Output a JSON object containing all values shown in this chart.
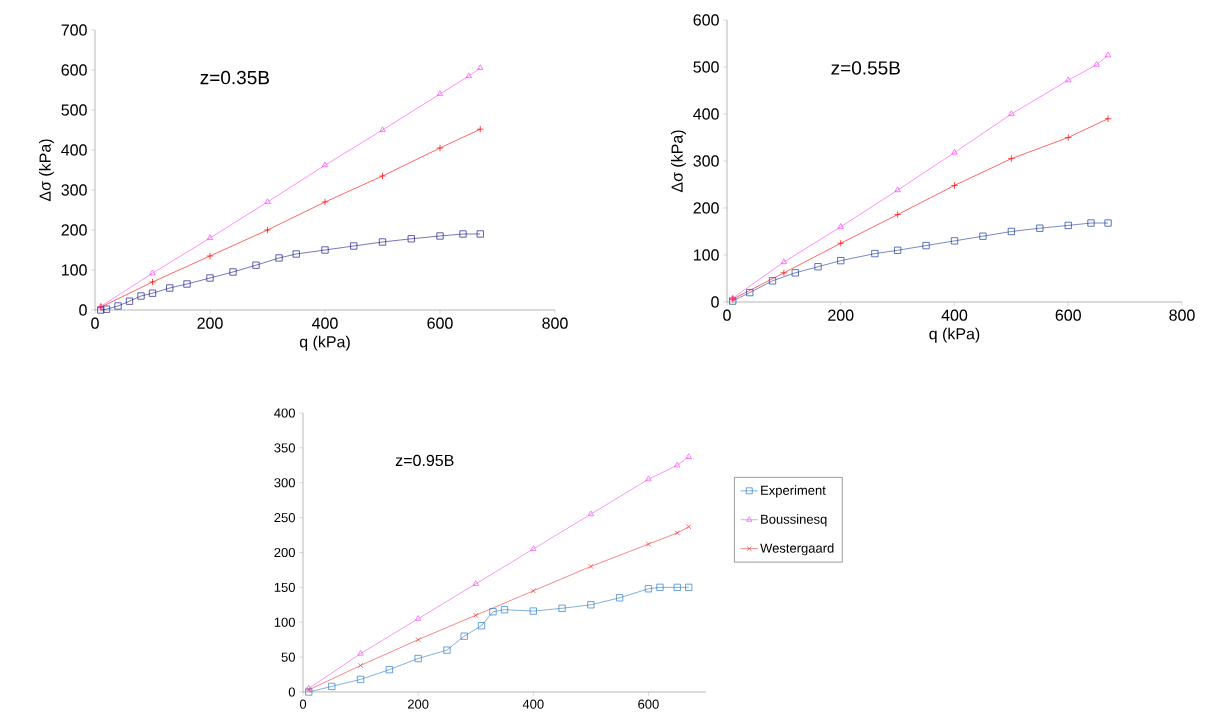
{
  "chart_data": [
    {
      "type": "line",
      "xlabel": "q (kPa)",
      "ylabel": "Δσ (kPa)",
      "annotations": [
        "z=0.35B"
      ],
      "xlim": [
        0,
        800
      ],
      "xticks": [
        0,
        200,
        400,
        600,
        800
      ],
      "ylim": [
        0,
        700
      ],
      "yticks": [
        0,
        100,
        200,
        300,
        400,
        500,
        600,
        700
      ],
      "line_style": "solid",
      "legend": false,
      "grid": false,
      "series": [
        {
          "color": "#1c1c8c",
          "marker": "square",
          "x": [
            10,
            20,
            40,
            60,
            80,
            100,
            130,
            160,
            200,
            240,
            280,
            320,
            350,
            400,
            450,
            500,
            550,
            600,
            640,
            670
          ],
          "values": [
            0,
            2,
            10,
            22,
            35,
            42,
            55,
            65,
            80,
            95,
            112,
            130,
            140,
            150,
            160,
            170,
            178,
            185,
            190,
            190
          ]
        },
        {
          "color": "#ff44ff",
          "marker": "triangle",
          "x": [
            10,
            100,
            200,
            300,
            400,
            500,
            600,
            650,
            670
          ],
          "values": [
            9,
            92,
            180,
            270,
            362,
            450,
            540,
            585,
            605
          ]
        },
        {
          "color": "#ff0000",
          "marker": "plus",
          "x": [
            10,
            100,
            200,
            300,
            400,
            500,
            600,
            670
          ],
          "values": [
            7,
            70,
            135,
            200,
            270,
            335,
            405,
            452
          ]
        }
      ]
    },
    {
      "type": "line",
      "xlabel": "q (kPa)",
      "ylabel": "Δσ (kPa)",
      "annotations": [
        "z=0.55B"
      ],
      "xlim": [
        0,
        800
      ],
      "xticks": [
        0,
        200,
        400,
        600,
        800
      ],
      "ylim": [
        0,
        600
      ],
      "yticks": [
        0,
        100,
        200,
        300,
        400,
        500,
        600
      ],
      "line_style": "solid",
      "legend": false,
      "grid": false,
      "series": [
        {
          "color": "#1c3c9c",
          "marker": "square",
          "x": [
            10,
            40,
            80,
            120,
            160,
            200,
            260,
            300,
            350,
            400,
            450,
            500,
            550,
            600,
            640,
            670
          ],
          "values": [
            2,
            20,
            45,
            62,
            75,
            88,
            103,
            110,
            120,
            130,
            140,
            150,
            157,
            163,
            168,
            168
          ]
        },
        {
          "color": "#ff44ff",
          "marker": "triangle",
          "x": [
            10,
            100,
            200,
            300,
            400,
            500,
            600,
            650,
            670
          ],
          "values": [
            8,
            85,
            160,
            238,
            318,
            400,
            472,
            505,
            525
          ]
        },
        {
          "color": "#ff0000",
          "marker": "plus",
          "x": [
            10,
            100,
            200,
            300,
            400,
            500,
            600,
            670
          ],
          "values": [
            6,
            62,
            125,
            186,
            248,
            305,
            350,
            390
          ]
        }
      ]
    },
    {
      "type": "line",
      "annotations": [
        "z=0.95B"
      ],
      "xlim": [
        0,
        700
      ],
      "xticks": [
        0,
        200,
        400,
        600
      ],
      "ylim": [
        0,
        400
      ],
      "yticks": [
        0,
        50,
        100,
        150,
        200,
        250,
        300,
        350,
        400
      ],
      "line_style": "solid",
      "legend": "right",
      "grid": false,
      "series": [
        {
          "name": "Experiment",
          "color": "#2e7cc6",
          "marker": "square",
          "x": [
            10,
            50,
            100,
            150,
            200,
            250,
            280,
            310,
            330,
            350,
            400,
            450,
            500,
            550,
            600,
            620,
            650,
            670
          ],
          "values": [
            0,
            8,
            18,
            32,
            48,
            60,
            80,
            95,
            115,
            118,
            116,
            120,
            125,
            135,
            148,
            150,
            150,
            150
          ]
        },
        {
          "name": "Boussinesq",
          "color": "#ee55ee",
          "marker": "triangle",
          "x": [
            10,
            100,
            200,
            300,
            400,
            500,
            600,
            650,
            670
          ],
          "values": [
            5,
            55,
            105,
            155,
            205,
            255,
            305,
            325,
            337
          ]
        },
        {
          "name": "Westergaard",
          "color": "#f03838",
          "marker": "cross",
          "x": [
            10,
            100,
            200,
            300,
            400,
            500,
            600,
            650,
            670
          ],
          "values": [
            3,
            38,
            75,
            110,
            145,
            180,
            212,
            228,
            237
          ]
        }
      ]
    }
  ]
}
